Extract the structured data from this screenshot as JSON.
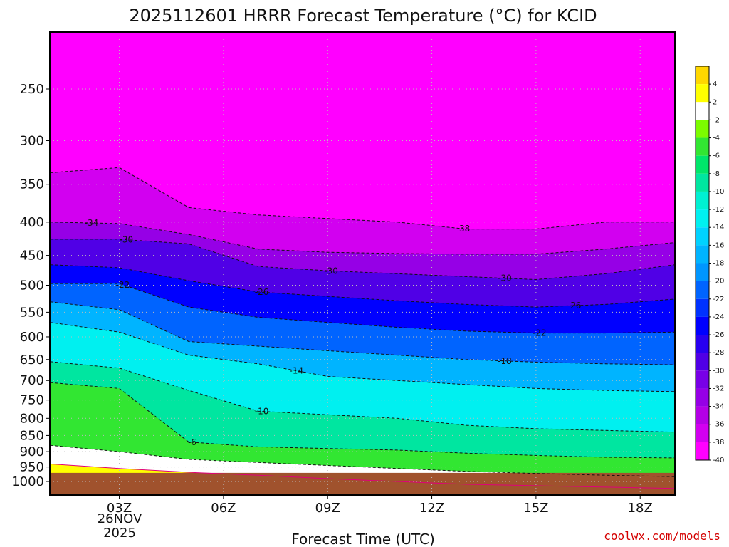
{
  "title": "2025112601 HRRR Forecast Temperature (°C) for KCID",
  "xlabel": "Forecast Time (UTC)",
  "credit": "coolwx.com/models",
  "date_label": [
    "26NOV",
    "2025"
  ],
  "chart_data": {
    "type": "heatmap",
    "title": "2025112601 HRRR Forecast Temperature (°C) for KCID",
    "xlabel": "Forecast Time (UTC)",
    "ylabel": "",
    "x_unit": "hours UTC from 00Z 26NOV2025",
    "xlim": [
      1,
      19
    ],
    "y_ticks": [
      250,
      300,
      350,
      400,
      450,
      500,
      550,
      600,
      650,
      700,
      750,
      800,
      850,
      900,
      950,
      1000
    ],
    "x_ticks": [
      {
        "value": 3,
        "label": "03Z"
      },
      {
        "value": 6,
        "label": "06Z"
      },
      {
        "value": 9,
        "label": "09Z"
      },
      {
        "value": 12,
        "label": "12Z"
      },
      {
        "value": 15,
        "label": "15Z"
      },
      {
        "value": 18,
        "label": "18Z"
      }
    ],
    "x": [
      1,
      3,
      5,
      7,
      9,
      11,
      13,
      15,
      17,
      19
    ],
    "isotherms": [
      {
        "value": -38,
        "p": [
          336,
          330,
          380,
          390,
          395,
          400,
          410,
          410,
          400,
          400
        ]
      },
      {
        "value": -34,
        "p": [
          400,
          402,
          418,
          440,
          445,
          447,
          448,
          448,
          440,
          430
        ]
      },
      {
        "value": -30,
        "p": [
          425,
          425,
          432,
          468,
          475,
          480,
          485,
          490,
          480,
          465
        ]
      },
      {
        "value": -26,
        "p": [
          465,
          470,
          492,
          512,
          520,
          528,
          535,
          540,
          535,
          525
        ]
      },
      {
        "value": -22,
        "p": [
          497,
          497,
          540,
          560,
          570,
          580,
          588,
          592,
          592,
          590
        ]
      },
      {
        "value": -18,
        "p": [
          530,
          545,
          610,
          620,
          630,
          640,
          650,
          656,
          660,
          662
        ]
      },
      {
        "value": -14,
        "p": [
          570,
          590,
          640,
          660,
          690,
          700,
          710,
          720,
          725,
          728
        ]
      },
      {
        "value": -10,
        "p": [
          655,
          670,
          725,
          780,
          790,
          800,
          820,
          830,
          835,
          840
        ]
      },
      {
        "value": -6,
        "p": [
          705,
          720,
          870,
          885,
          890,
          895,
          905,
          912,
          918,
          920
        ]
      },
      {
        "value": -2,
        "p": [
          880,
          900,
          925,
          935,
          945,
          955,
          965,
          972,
          978,
          983
        ]
      },
      {
        "value": 2,
        "p": [
          940,
          955,
          968,
          978,
          990,
          1000,
          1010,
          1015,
          1020,
          1025
        ]
      }
    ],
    "contour_labels": [
      {
        "value": -34,
        "x": 2.2
      },
      {
        "value": -30,
        "x": 3.2
      },
      {
        "value": -22,
        "x": 3.1
      },
      {
        "value": -26,
        "x": 7.1
      },
      {
        "value": -30,
        "x": 9.1
      },
      {
        "value": -38,
        "x": 12.9
      },
      {
        "value": -30,
        "x": 14.1
      },
      {
        "value": -26,
        "x": 16.1
      },
      {
        "value": -22,
        "x": 15.1
      },
      {
        "value": -18,
        "x": 14.1
      },
      {
        "value": -14,
        "x": 8.1
      },
      {
        "value": -10,
        "x": 7.1
      },
      {
        "value": -6,
        "x": 5.1
      }
    ],
    "ground": {
      "pressure": 970,
      "color": "#a0522d"
    },
    "colorbar": {
      "labels": [
        "4",
        "2",
        "-2",
        "-4",
        "-6",
        "-8",
        "-10",
        "-12",
        "-14",
        "-16",
        "-18",
        "-20",
        "-22",
        "-24",
        "-26",
        "-28",
        "-30",
        "-32",
        "-34",
        "-36",
        "-38",
        "-40"
      ],
      "bins": [
        {
          "lo": 4,
          "hi": 6,
          "color": "#ffd700"
        },
        {
          "lo": 2,
          "hi": 4,
          "color": "#ffff00"
        },
        {
          "lo": -2,
          "hi": 2,
          "color": "#ffffff"
        },
        {
          "lo": -4,
          "hi": -2,
          "color": "#7cfc00"
        },
        {
          "lo": -6,
          "hi": -4,
          "color": "#32e632"
        },
        {
          "lo": -8,
          "hi": -6,
          "color": "#00e66a"
        },
        {
          "lo": -10,
          "hi": -8,
          "color": "#00e6a0"
        },
        {
          "lo": -12,
          "hi": -10,
          "color": "#00f0d2"
        },
        {
          "lo": -14,
          "hi": -12,
          "color": "#00f0f0"
        },
        {
          "lo": -16,
          "hi": -14,
          "color": "#00d2ff"
        },
        {
          "lo": -18,
          "hi": -16,
          "color": "#00b4ff"
        },
        {
          "lo": -20,
          "hi": -18,
          "color": "#0096ff"
        },
        {
          "lo": -22,
          "hi": -20,
          "color": "#0064ff"
        },
        {
          "lo": -24,
          "hi": -22,
          "color": "#0032ff"
        },
        {
          "lo": -26,
          "hi": -24,
          "color": "#0000ff"
        },
        {
          "lo": -28,
          "hi": -26,
          "color": "#2800f0"
        },
        {
          "lo": -30,
          "hi": -28,
          "color": "#5000e6"
        },
        {
          "lo": -32,
          "hi": -30,
          "color": "#7800e6"
        },
        {
          "lo": -34,
          "hi": -32,
          "color": "#9600e6"
        },
        {
          "lo": -36,
          "hi": -34,
          "color": "#b400e6"
        },
        {
          "lo": -38,
          "hi": -36,
          "color": "#d200f0"
        },
        {
          "lo": -40,
          "hi": -38,
          "color": "#ff00ff"
        }
      ]
    }
  }
}
